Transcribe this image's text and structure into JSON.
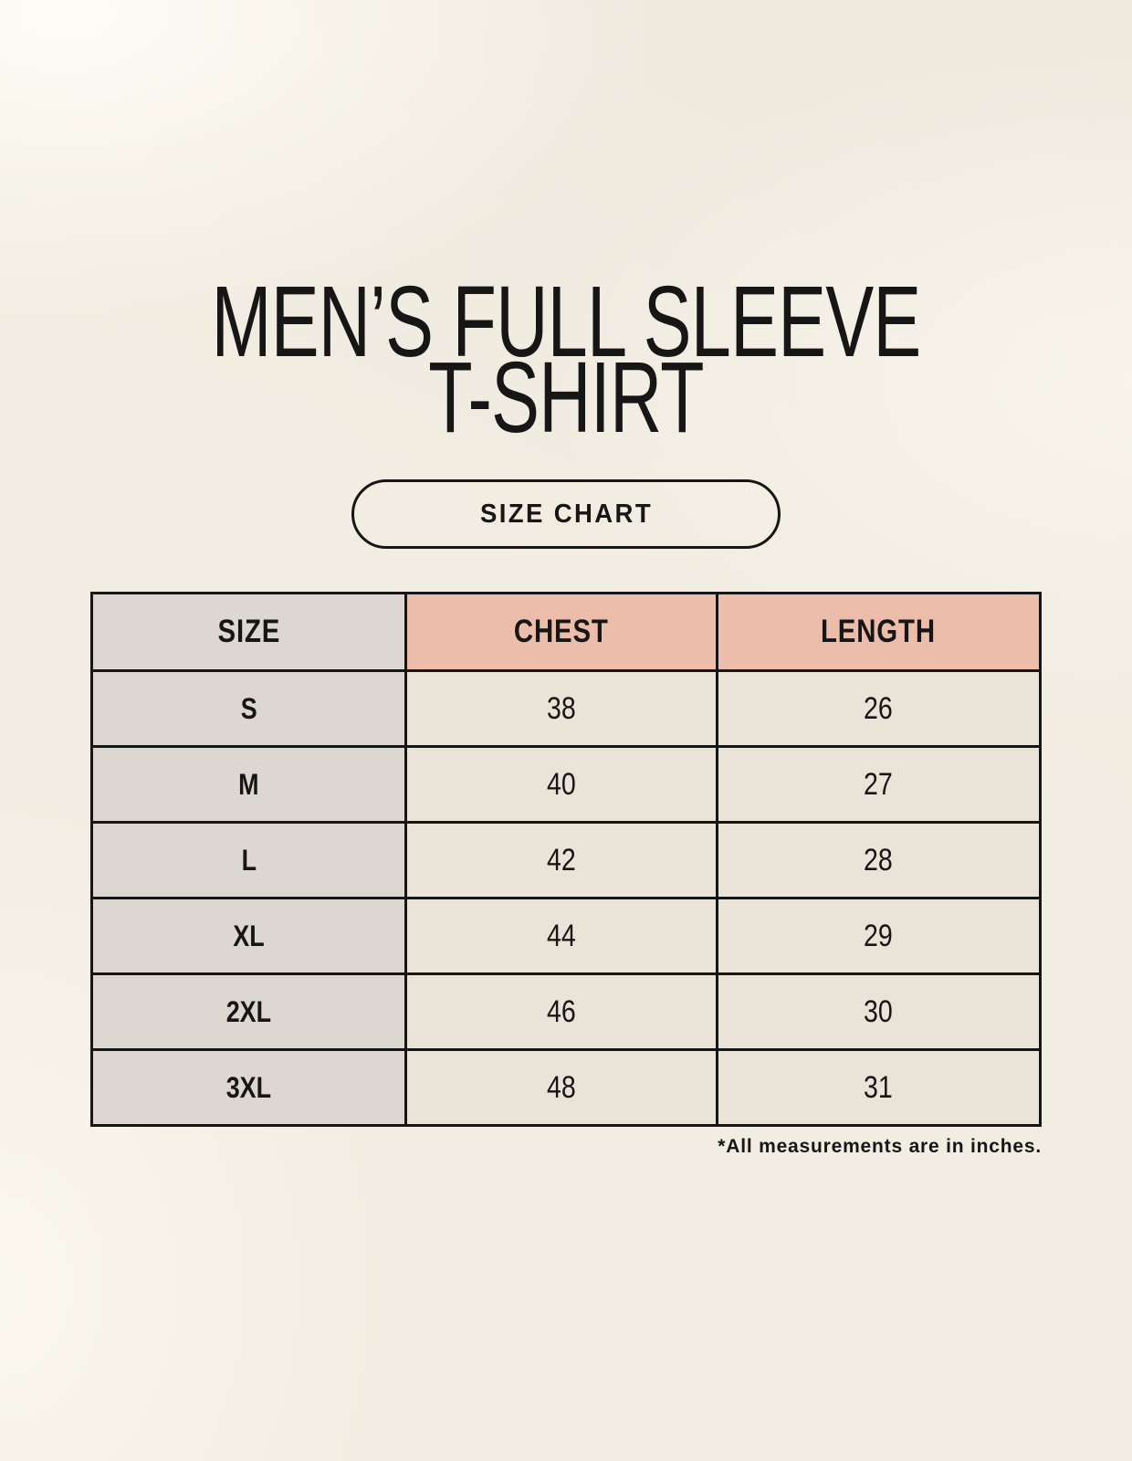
{
  "header": {
    "title_line1": "MEN’S FULL SLEEVE",
    "title_line2": "T-SHIRT",
    "button_label": "SIZE CHART"
  },
  "footnote": "*All measurements are in inches.",
  "chart_data": {
    "type": "table",
    "title": "SIZE CHART",
    "columns": [
      "SIZE",
      "CHEST",
      "LENGTH"
    ],
    "rows": [
      [
        "S",
        "38",
        "26"
      ],
      [
        "M",
        "40",
        "27"
      ],
      [
        "L",
        "42",
        "28"
      ],
      [
        "XL",
        "44",
        "29"
      ],
      [
        "2XL",
        "46",
        "30"
      ],
      [
        "3XL",
        "48",
        "31"
      ]
    ],
    "units": "inches"
  },
  "colors": {
    "page_bg": "#f2ede2",
    "size_col_bg": "#ddd7d2",
    "accent_header_bg": "#edbdac",
    "value_cell_bg": "#eae3d7",
    "border": "#161616",
    "text": "#161616"
  }
}
